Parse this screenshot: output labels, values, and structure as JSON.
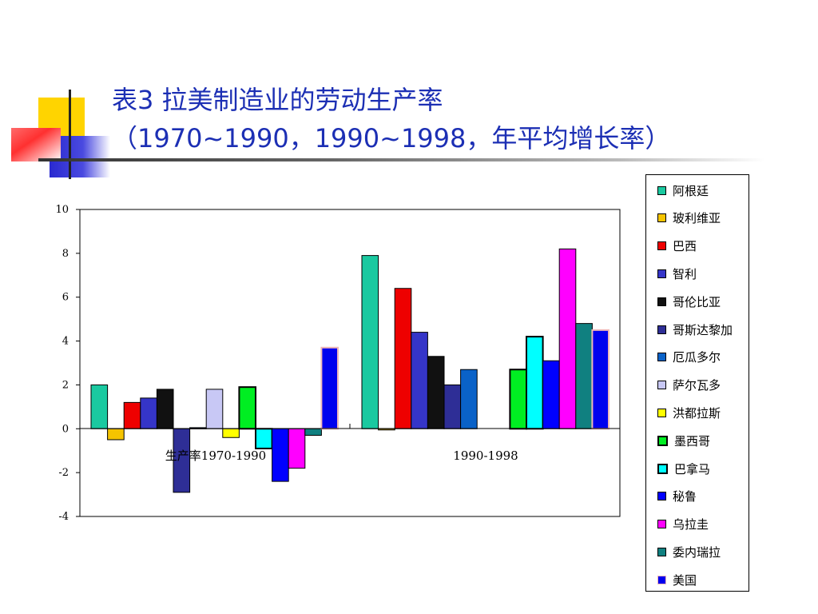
{
  "slide": {
    "title_line1": "表3 拉美制造业的劳动生产率",
    "title_line2": "（1970~1990，1990~1998，年平均增长率）",
    "title_color": "#1c2fb4"
  },
  "chart_data": {
    "type": "bar",
    "title": "",
    "xlabel": "",
    "ylabel": "",
    "ylim": [
      -4,
      10
    ],
    "yticks": [
      "10",
      "8",
      "6",
      "4",
      "2",
      "0",
      "-2",
      "-4"
    ],
    "categories": [
      "生产率1970-1990",
      "1990-1998"
    ],
    "legend_position": "right",
    "grid": false,
    "series": [
      {
        "name": "阿根廷",
        "color": "#1ac9a0",
        "values": [
          2.0,
          7.9
        ]
      },
      {
        "name": "玻利维亚",
        "color": "#f5c400",
        "values": [
          -0.5,
          -0.05
        ]
      },
      {
        "name": "巴西",
        "color": "#ee0000",
        "values": [
          1.2,
          6.4
        ]
      },
      {
        "name": "智利",
        "color": "#3535c8",
        "values": [
          1.4,
          4.4
        ]
      },
      {
        "name": "哥伦比亚",
        "color": "#111111",
        "values": [
          1.8,
          3.3
        ]
      },
      {
        "name": "哥斯达黎加",
        "color": "#2e2e96",
        "values": [
          -2.9,
          2.0
        ]
      },
      {
        "name": "厄瓜多尔",
        "color": "#0a62c8",
        "values": [
          0.05,
          2.7
        ]
      },
      {
        "name": "萨尔瓦多",
        "color": "#c8c8f5",
        "values": [
          1.8,
          null
        ]
      },
      {
        "name": "洪都拉斯",
        "color": "#ffff00",
        "values": [
          -0.4,
          null
        ]
      },
      {
        "name": "墨西哥",
        "color": "#00ee22",
        "values": [
          1.9,
          2.7
        ]
      },
      {
        "name": "巴拿马",
        "color": "#00ffff",
        "values": [
          -0.9,
          4.2
        ]
      },
      {
        "name": "秘鲁",
        "color": "#0000ff",
        "values": [
          -2.4,
          3.1
        ]
      },
      {
        "name": "乌拉圭",
        "color": "#ff00ff",
        "values": [
          -1.8,
          8.2
        ]
      },
      {
        "name": "委内瑞拉",
        "color": "#108080",
        "values": [
          -0.3,
          4.8
        ]
      },
      {
        "name": "美国",
        "color": "#0000ee",
        "values": [
          3.7,
          4.5
        ]
      }
    ]
  }
}
